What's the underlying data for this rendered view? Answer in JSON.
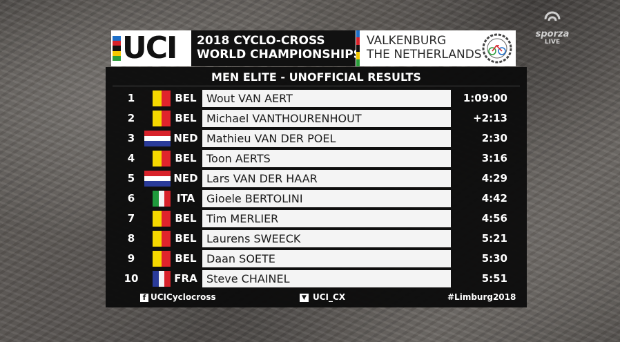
{
  "header": {
    "logo_text": "UCI",
    "title_line1": "2018 CYCLO-CROSS",
    "title_line2": "WORLD CHAMPIONSHIPS",
    "location_line1": "VALKENBURG",
    "location_line2": "THE NETHERLANDS",
    "rainbow_colors": [
      "#1e6fc9",
      "#d8222a",
      "#111111",
      "#f5c800",
      "#2a9d3a"
    ]
  },
  "broadcaster": {
    "brand": "sporza",
    "live": "LIVE"
  },
  "board": {
    "title": "MEN ELITE - UNOFFICIAL RESULTS",
    "rows": [
      {
        "pos": "1",
        "nat": "BEL",
        "flag": "belgium-flag-icon",
        "name": "Wout VAN AERT",
        "time": "1:09:00"
      },
      {
        "pos": "2",
        "nat": "BEL",
        "flag": "belgium-flag-icon",
        "name": "Michael VANTHOURENHOUT",
        "time": "+2:13"
      },
      {
        "pos": "3",
        "nat": "NED",
        "flag": "netherlands-flag-icon",
        "name": "Mathieu VAN DER POEL",
        "time": "2:30"
      },
      {
        "pos": "4",
        "nat": "BEL",
        "flag": "belgium-flag-icon",
        "name": "Toon AERTS",
        "time": "3:16"
      },
      {
        "pos": "5",
        "nat": "NED",
        "flag": "netherlands-flag-icon",
        "name": "Lars VAN DER HAAR",
        "time": "4:29"
      },
      {
        "pos": "6",
        "nat": "ITA",
        "flag": "italy-flag-icon",
        "name": "Gioele BERTOLINI",
        "time": "4:42"
      },
      {
        "pos": "7",
        "nat": "BEL",
        "flag": "belgium-flag-icon",
        "name": "Tim MERLIER",
        "time": "4:56"
      },
      {
        "pos": "8",
        "nat": "BEL",
        "flag": "belgium-flag-icon",
        "name": "Laurens SWEECK",
        "time": "5:21"
      },
      {
        "pos": "9",
        "nat": "BEL",
        "flag": "belgium-flag-icon",
        "name": "Daan SOETE",
        "time": "5:30"
      },
      {
        "pos": "10",
        "nat": "FRA",
        "flag": "france-flag-icon",
        "name": "Steve CHAINEL",
        "time": "5:51"
      }
    ]
  },
  "footer": {
    "facebook": "UCICyclocross",
    "twitter": "UCI_CX",
    "hashtag": "#Limburg2018"
  }
}
